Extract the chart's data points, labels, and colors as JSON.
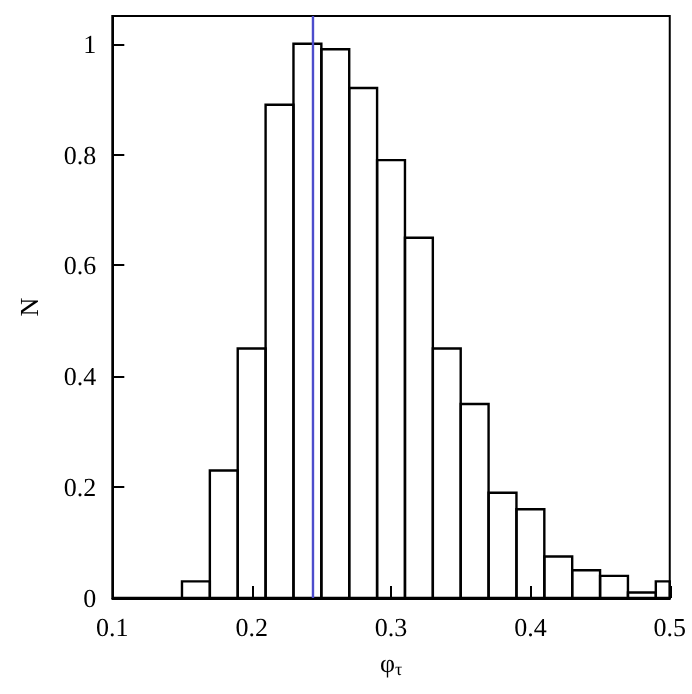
{
  "chart_data": {
    "type": "histogram",
    "xlabel": "φ$_{τ}$",
    "ylabel": "N",
    "bins": [
      0.1,
      0.15,
      0.17,
      0.19,
      0.21,
      0.23,
      0.25,
      0.27,
      0.29,
      0.31,
      0.33,
      0.35,
      0.37,
      0.39,
      0.41,
      0.43,
      0.45,
      0.47,
      0.49,
      0.5
    ],
    "values": [
      0,
      0.03,
      0.23,
      0.45,
      0.89,
      1.0,
      0.99,
      0.92,
      0.79,
      0.65,
      0.45,
      0.35,
      0.19,
      0.16,
      0.075,
      0.05,
      0.04,
      0.01,
      0.03
    ],
    "color": "#000000",
    "xlim": [
      0.1,
      0.5
    ],
    "xticks": [
      0.1,
      0.2,
      0.3,
      0.4,
      0.5
    ],
    "ylim": [
      0,
      1.05
    ],
    "yticks": [
      0,
      0.2,
      0.4,
      0.6,
      0.8,
      1
    ],
    "ref_lines": [
      {
        "axis": "x",
        "value": 0.244,
        "color": "#4c4ccc"
      }
    ],
    "grid": false,
    "legend": false
  }
}
